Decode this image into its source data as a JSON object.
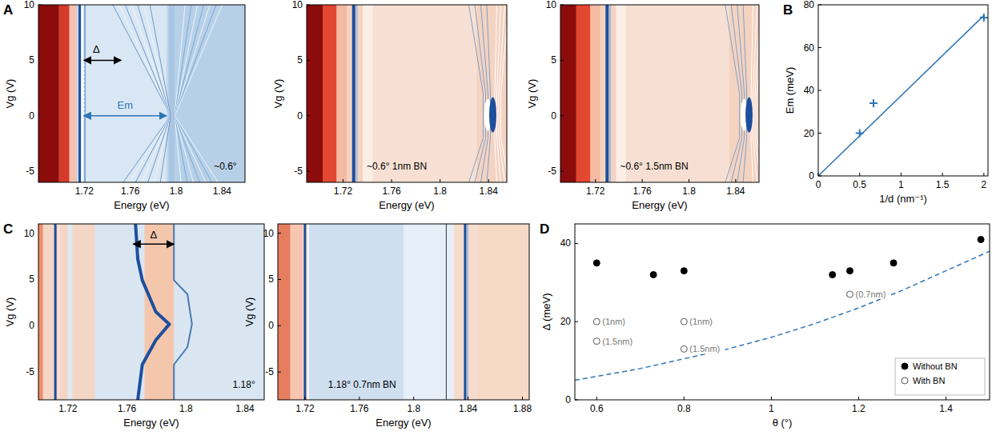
{
  "chart_data": [
    {
      "type": "heatmap",
      "panel": "A",
      "annotations": [
        "~0.6°",
        "Δ",
        "Em"
      ],
      "xlabel": "Energy (eV)",
      "ylabel": "Vg (V)",
      "xlim": [
        1.68,
        1.86
      ],
      "ylim": [
        -6,
        10
      ],
      "xticks": [
        1.72,
        1.76,
        1.8,
        1.84
      ],
      "yticks": [
        -5,
        0,
        5,
        10
      ]
    },
    {
      "type": "heatmap",
      "annotations": [
        "~0.6° 1nm BN"
      ],
      "xlabel": "Energy (eV)",
      "ylabel": "Vg (V)",
      "xlim": [
        1.69,
        1.855
      ],
      "ylim": [
        -6,
        10
      ],
      "xticks": [
        1.72,
        1.76,
        1.8,
        1.84
      ],
      "yticks": [
        -5,
        0,
        5,
        10
      ]
    },
    {
      "type": "heatmap",
      "annotations": [
        "~0.6° 1.5nm BN"
      ],
      "xlabel": "Energy (eV)",
      "ylabel": "Vg (V)",
      "xlim": [
        1.69,
        1.86
      ],
      "ylim": [
        -6,
        10
      ],
      "xticks": [
        1.72,
        1.76,
        1.8,
        1.84
      ],
      "yticks": [
        -5,
        0,
        5,
        10
      ]
    },
    {
      "type": "scatter",
      "panel": "B",
      "xlabel": "1/d (nm⁻¹)",
      "ylabel": "Em (meV)",
      "xlim": [
        0,
        2.05
      ],
      "ylim": [
        0,
        80
      ],
      "xticks": [
        0,
        0.5,
        1,
        1.5,
        2
      ],
      "yticks": [
        0,
        20,
        40,
        60,
        80
      ],
      "series": [
        {
          "type": "scatter",
          "marker": "plus",
          "color": "#2e75b6",
          "x": [
            0.5,
            0.667,
            2
          ],
          "values": [
            20,
            34,
            74
          ]
        },
        {
          "type": "line",
          "line_style": "solid",
          "color": "#2e75b6",
          "x": [
            0,
            2
          ],
          "values": [
            0,
            75
          ]
        }
      ]
    },
    {
      "type": "heatmap",
      "panel": "C",
      "annotations": [
        "1.18°",
        "Δ"
      ],
      "xlabel": "Energy (eV)",
      "ylabel": "Vg (V)",
      "xlim": [
        1.7,
        1.853
      ],
      "ylim": [
        -8,
        11
      ],
      "xticks": [
        1.72,
        1.76,
        1.8,
        1.84
      ],
      "yticks": [
        -5,
        0,
        5,
        10
      ]
    },
    {
      "type": "heatmap",
      "annotations": [
        "1.18° 0.7nm BN"
      ],
      "xlabel": "Energy (eV)",
      "ylabel": "Vg (V)",
      "xlim": [
        1.7,
        1.885
      ],
      "ylim": [
        -8,
        11
      ],
      "xticks": [
        1.72,
        1.76,
        1.8,
        1.84,
        1.88
      ],
      "yticks": [
        -5,
        0,
        5,
        10
      ]
    },
    {
      "type": "scatter",
      "panel": "D",
      "xlabel": "θ (°)",
      "ylabel": "Δ (meV)",
      "legend": "lower right",
      "xlim": [
        0.55,
        1.5
      ],
      "ylim": [
        0,
        45
      ],
      "xticks": [
        0.6,
        0.8,
        1,
        1.2,
        1.4
      ],
      "yticks": [
        0,
        20,
        40
      ],
      "series": [
        {
          "name": "Without BN",
          "type": "scatter",
          "marker": "circle",
          "color": "#000000",
          "x": [
            0.6,
            0.73,
            0.8,
            1.14,
            1.18,
            1.28,
            1.48
          ],
          "values": [
            35,
            32,
            33,
            32,
            33,
            35,
            41
          ]
        },
        {
          "name": "With BN",
          "type": "scatter",
          "marker": "circle-open",
          "color": "#555555",
          "x": [
            0.6,
            0.6,
            0.8,
            0.8,
            1.18
          ],
          "values": [
            20,
            15,
            20,
            13,
            27
          ],
          "point_labels": [
            "(1nm)",
            "(1.5nm)",
            "(1nm)",
            "(1.5nm)",
            "(0.7nm)"
          ]
        },
        {
          "type": "line",
          "line_style": "dashed",
          "color": "#2e75b6",
          "x": [
            0.55,
            0.6,
            0.7,
            0.8,
            0.9,
            1.0,
            1.1,
            1.2,
            1.3,
            1.4,
            1.5
          ],
          "values": [
            5,
            6,
            8,
            10.5,
            13,
            16,
            19.5,
            23.5,
            28,
            33,
            38
          ]
        }
      ]
    }
  ]
}
